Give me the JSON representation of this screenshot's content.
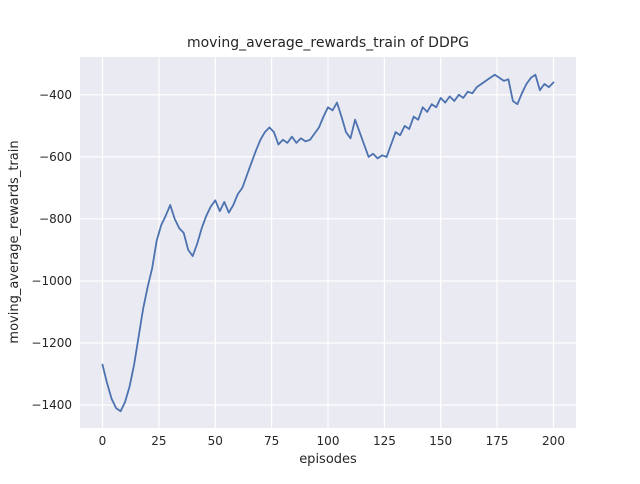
{
  "figure": {
    "background_color": "#ffffff",
    "panel_color": "#eaeaf2",
    "grid_color": "#ffffff",
    "line_color": "#4c72b0",
    "text_color": "#262626"
  },
  "chart_data": {
    "type": "line",
    "title": "moving_average_rewards_train of DDPG",
    "xlabel": "episodes",
    "ylabel": "moving_average_rewards_train",
    "grid": true,
    "legend": false,
    "xlim": [
      -10,
      210
    ],
    "ylim": [
      -1474,
      -278
    ],
    "xticks": [
      0,
      25,
      50,
      75,
      100,
      125,
      150,
      175,
      200
    ],
    "yticks": [
      -1400,
      -1200,
      -1000,
      -800,
      -600,
      -400
    ],
    "x": [
      0,
      2,
      4,
      6,
      8,
      10,
      12,
      14,
      16,
      18,
      20,
      22,
      24,
      26,
      28,
      30,
      32,
      34,
      36,
      38,
      40,
      42,
      44,
      46,
      48,
      50,
      52,
      54,
      56,
      58,
      60,
      62,
      64,
      66,
      68,
      70,
      72,
      74,
      76,
      78,
      80,
      82,
      84,
      86,
      88,
      90,
      92,
      94,
      96,
      98,
      100,
      102,
      104,
      106,
      108,
      110,
      112,
      114,
      116,
      118,
      120,
      122,
      124,
      126,
      128,
      130,
      132,
      134,
      136,
      138,
      140,
      142,
      144,
      146,
      148,
      150,
      152,
      154,
      156,
      158,
      160,
      162,
      164,
      166,
      168,
      170,
      172,
      174,
      176,
      178,
      180,
      182,
      184,
      186,
      188,
      190,
      192,
      194,
      196,
      198,
      200
    ],
    "y": [
      -1270,
      -1330,
      -1380,
      -1410,
      -1420,
      -1390,
      -1340,
      -1270,
      -1180,
      -1090,
      -1020,
      -960,
      -870,
      -820,
      -790,
      -755,
      -800,
      -830,
      -845,
      -900,
      -920,
      -880,
      -830,
      -790,
      -760,
      -740,
      -775,
      -745,
      -780,
      -755,
      -720,
      -700,
      -660,
      -620,
      -580,
      -545,
      -520,
      -505,
      -520,
      -560,
      -545,
      -555,
      -535,
      -555,
      -540,
      -550,
      -545,
      -525,
      -505,
      -470,
      -440,
      -450,
      -425,
      -470,
      -520,
      -540,
      -480,
      -520,
      -560,
      -600,
      -590,
      -605,
      -595,
      -600,
      -560,
      -520,
      -530,
      -500,
      -510,
      -470,
      -480,
      -440,
      -455,
      -430,
      -440,
      -410,
      -425,
      -405,
      -420,
      -400,
      -410,
      -390,
      -395,
      -375,
      -365,
      -355,
      -345,
      -335,
      -345,
      -355,
      -350,
      -420,
      -430,
      -395,
      -365,
      -345,
      -335,
      -385,
      -365,
      -375,
      -360
    ]
  }
}
